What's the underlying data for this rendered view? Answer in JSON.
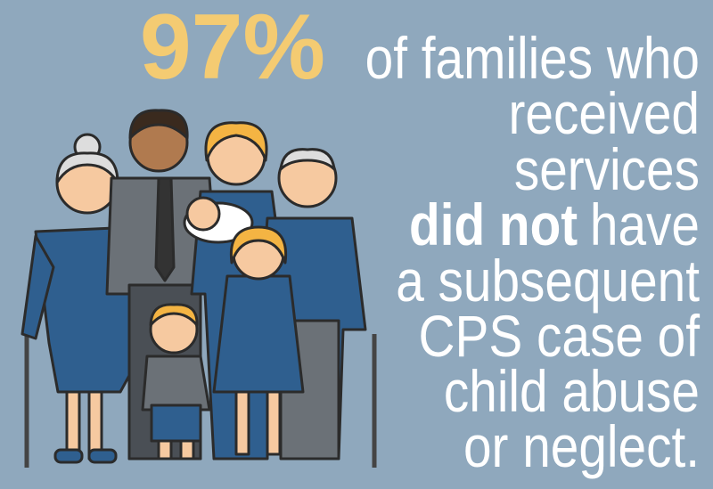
{
  "headline": {
    "stat": "97%",
    "lines": [
      {
        "text": "of families who"
      },
      {
        "text": "received"
      },
      {
        "text": "services"
      },
      {
        "bold": "did not",
        "text": "have"
      },
      {
        "text": "a subsequent"
      },
      {
        "text": "CPS case of"
      },
      {
        "text": "child abuse"
      },
      {
        "text": "or neglect."
      }
    ]
  }
}
